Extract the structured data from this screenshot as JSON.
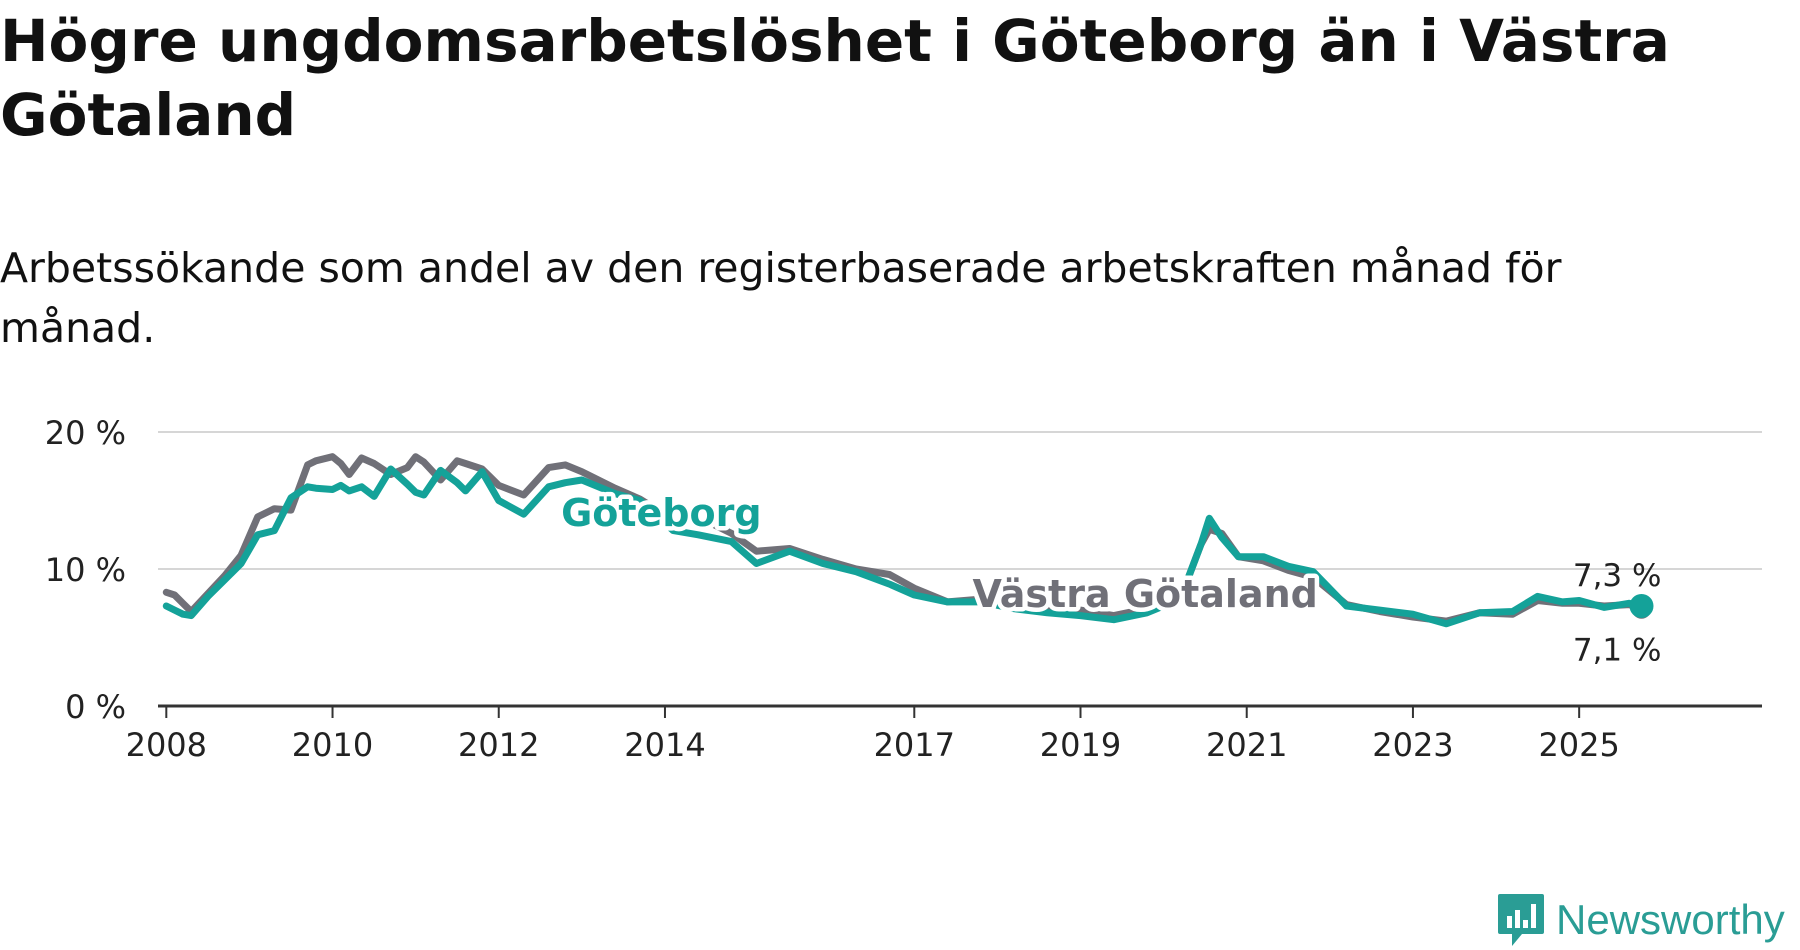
{
  "header": {
    "title": "Högre ungdomsarbetslöshet i Göteborg än i Västra Götaland",
    "subtitle": "Arbetssökande som andel av den registerbaserade arbetskraften månad för månad."
  },
  "brand": {
    "name": "Newsworthy",
    "icon": "newsworthy-logo-icon",
    "color": "#2a9d95"
  },
  "colors": {
    "goteborg": "#14a299",
    "vastra_gotaland": "#707078",
    "grid": "#d6d6d6",
    "axis": "#333333"
  },
  "chart_data": {
    "type": "line",
    "title": "Högre ungdomsarbetslöshet i Göteborg än i Västra Götaland",
    "xlabel": "",
    "ylabel": "",
    "xlim": [
      2007.9,
      2027.2
    ],
    "ylim": [
      0,
      20
    ],
    "yticks": [
      {
        "value": 0,
        "label": "0 %"
      },
      {
        "value": 10,
        "label": "10 %"
      },
      {
        "value": 20,
        "label": "20 %"
      }
    ],
    "xticks": [
      {
        "value": 2008,
        "label": "2008"
      },
      {
        "value": 2010,
        "label": "2010"
      },
      {
        "value": 2012,
        "label": "2012"
      },
      {
        "value": 2014,
        "label": "2014"
      },
      {
        "value": 2017,
        "label": "2017"
      },
      {
        "value": 2019,
        "label": "2019"
      },
      {
        "value": 2021,
        "label": "2021"
      },
      {
        "value": 2023,
        "label": "2023"
      },
      {
        "value": 2025,
        "label": "2025"
      }
    ],
    "grid": true,
    "series": [
      {
        "name": "Västra Götaland",
        "label": "Västra Götaland",
        "color": "#707078",
        "end_label": "7,1 %",
        "x": [
          2008.0,
          2008.1,
          2008.2,
          2008.3,
          2008.5,
          2008.7,
          2008.9,
          2009.1,
          2009.3,
          2009.5,
          2009.7,
          2009.8,
          2010.0,
          2010.1,
          2010.2,
          2010.35,
          2010.5,
          2010.7,
          2010.9,
          2011.0,
          2011.1,
          2011.3,
          2011.5,
          2011.6,
          2011.8,
          2012.0,
          2012.3,
          2012.6,
          2012.8,
          2013.0,
          2013.4,
          2013.7,
          2014.1,
          2014.4,
          2014.8,
          2015.1,
          2015.5,
          2015.9,
          2016.3,
          2016.7,
          2017.0,
          2017.4,
          2017.8,
          2018.2,
          2018.6,
          2019.0,
          2019.4,
          2019.8,
          2020.2,
          2020.45,
          2020.55,
          2020.7,
          2020.9,
          2021.2,
          2021.5,
          2021.8,
          2022.2,
          2022.6,
          2023.0,
          2023.4,
          2023.8,
          2024.2,
          2024.5,
          2024.8,
          2025.0,
          2025.3,
          2025.6,
          2025.75
        ],
        "values": [
          8.3,
          8.1,
          7.5,
          6.9,
          8.2,
          9.5,
          11.0,
          13.8,
          14.4,
          14.3,
          17.6,
          17.9,
          18.2,
          17.7,
          16.9,
          18.1,
          17.7,
          16.9,
          17.4,
          18.2,
          17.8,
          16.5,
          17.9,
          17.7,
          17.3,
          16.1,
          15.4,
          17.4,
          17.6,
          17.1,
          15.9,
          15.1,
          13.6,
          13.8,
          12.6,
          11.3,
          11.5,
          10.7,
          10.0,
          9.6,
          8.6,
          7.6,
          7.8,
          7.3,
          7.2,
          7.0,
          6.6,
          7.1,
          7.8,
          11.8,
          12.9,
          12.6,
          10.9,
          10.6,
          9.9,
          9.4,
          7.4,
          6.9,
          6.5,
          6.2,
          6.8,
          6.7,
          7.7,
          7.5,
          7.5,
          7.3,
          7.4,
          7.1
        ]
      },
      {
        "name": "Göteborg",
        "label": "Göteborg",
        "color": "#14a299",
        "end_label": "7,3 %",
        "x": [
          2008.0,
          2008.1,
          2008.2,
          2008.3,
          2008.5,
          2008.7,
          2008.9,
          2009.1,
          2009.3,
          2009.5,
          2009.7,
          2009.8,
          2010.0,
          2010.1,
          2010.2,
          2010.35,
          2010.5,
          2010.7,
          2010.9,
          2011.0,
          2011.1,
          2011.3,
          2011.5,
          2011.6,
          2011.8,
          2012.0,
          2012.3,
          2012.6,
          2012.8,
          2013.0,
          2013.4,
          2013.7,
          2014.1,
          2014.4,
          2014.8,
          2015.1,
          2015.5,
          2015.9,
          2016.3,
          2016.7,
          2017.0,
          2017.4,
          2017.8,
          2018.2,
          2018.6,
          2019.0,
          2019.4,
          2019.8,
          2020.2,
          2020.45,
          2020.55,
          2020.7,
          2020.9,
          2021.2,
          2021.5,
          2021.8,
          2022.2,
          2022.6,
          2023.0,
          2023.4,
          2023.8,
          2024.2,
          2024.5,
          2024.8,
          2025.0,
          2025.3,
          2025.6,
          2025.75
        ],
        "values": [
          7.3,
          7.0,
          6.7,
          6.6,
          8.0,
          9.2,
          10.4,
          12.5,
          12.8,
          15.2,
          16.0,
          15.9,
          15.8,
          16.1,
          15.7,
          16.0,
          15.3,
          17.3,
          16.2,
          15.6,
          15.4,
          17.2,
          16.3,
          15.7,
          17.1,
          15.0,
          14.0,
          16.0,
          16.3,
          16.5,
          15.5,
          15.0,
          12.8,
          12.5,
          12.0,
          10.4,
          11.3,
          10.4,
          9.8,
          8.9,
          8.1,
          7.6,
          7.6,
          7.1,
          6.8,
          6.6,
          6.3,
          6.8,
          7.8,
          11.8,
          13.7,
          12.3,
          10.9,
          10.9,
          10.2,
          9.8,
          7.3,
          7.0,
          6.7,
          6.0,
          6.8,
          6.9,
          8.0,
          7.6,
          7.7,
          7.2,
          7.5,
          7.3
        ]
      }
    ]
  }
}
